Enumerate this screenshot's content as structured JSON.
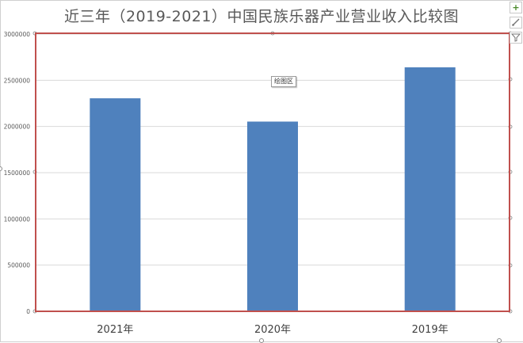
{
  "chart_data": {
    "type": "bar",
    "title": "近三年（2019-2021）中国民族乐器产业营业收入比较图",
    "categories": [
      "2021年",
      "2020年",
      "2019年"
    ],
    "values": [
      2305000,
      2053000,
      2640000
    ],
    "ylim": [
      0,
      3000000
    ],
    "yticks": [
      0,
      500000,
      1000000,
      1500000,
      2000000,
      2500000,
      3000000
    ],
    "xlabel": "",
    "ylabel": "",
    "grid": true,
    "legend": "none",
    "bar_color": "#4f81bd",
    "plot_area_border_color": "#c0504d"
  },
  "ui": {
    "plot_area_tooltip": "绘图区",
    "chart_elements_icon": "plus-icon",
    "chart_styles_icon": "brush-icon",
    "chart_filters_icon": "filter-icon"
  }
}
